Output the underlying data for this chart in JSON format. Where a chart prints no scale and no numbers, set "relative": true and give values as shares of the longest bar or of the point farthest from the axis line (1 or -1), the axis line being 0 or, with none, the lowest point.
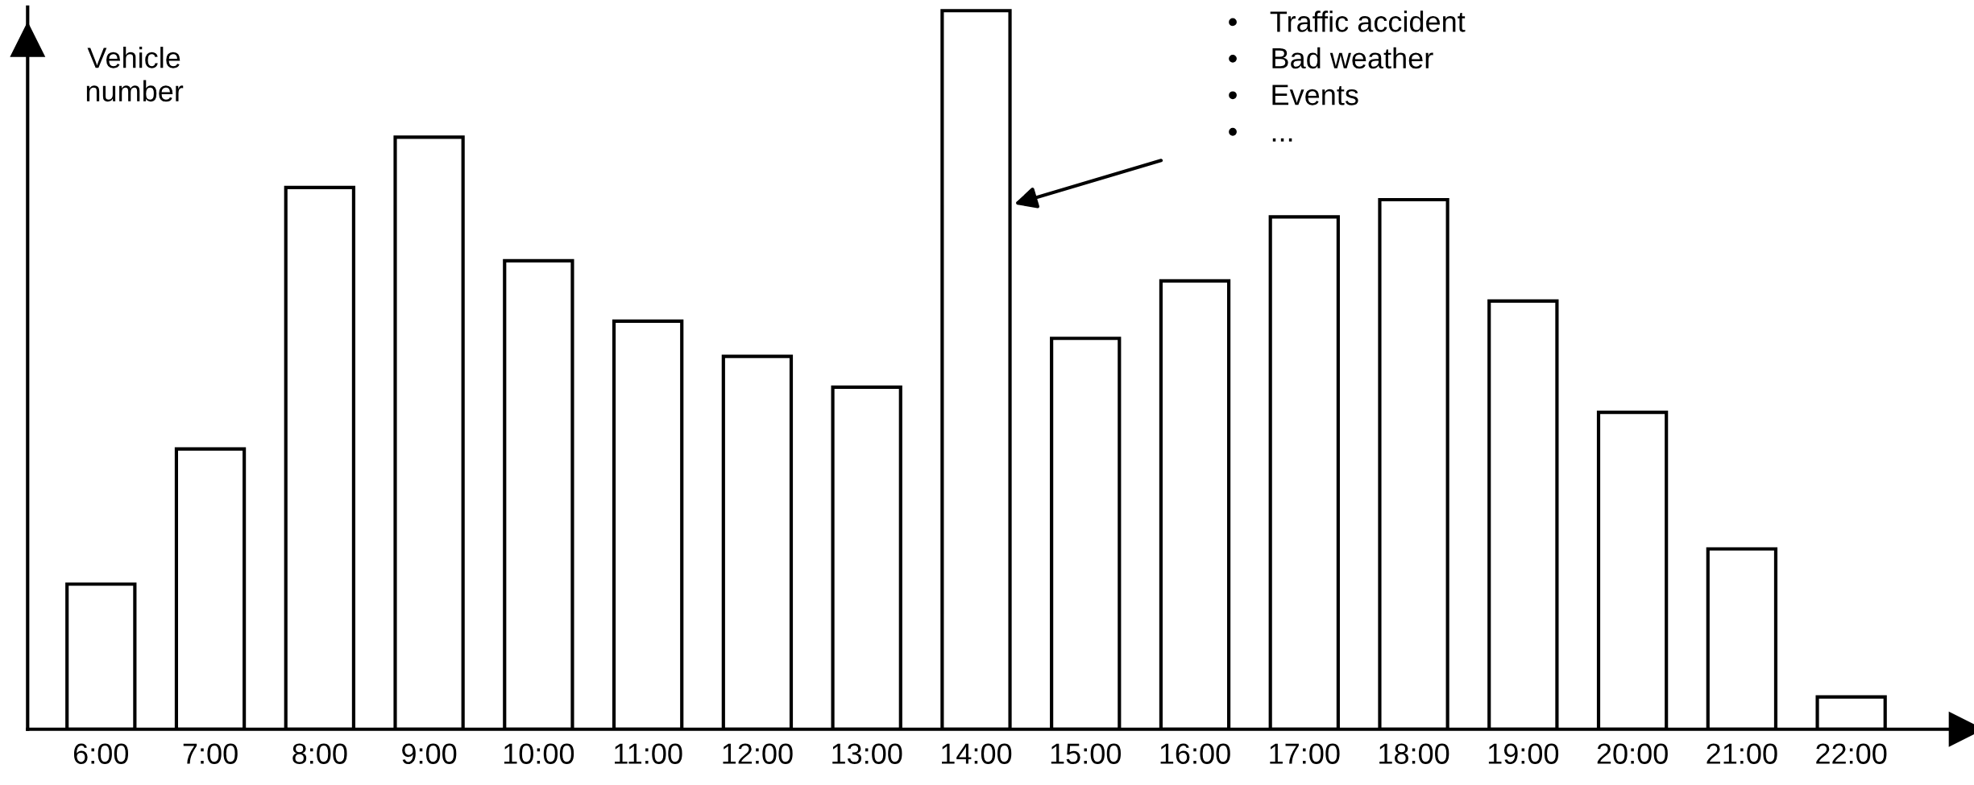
{
  "chart_data": {
    "type": "bar",
    "relative": true,
    "ylabel": "Vehicle\nnumber",
    "categories": [
      "6:00",
      "7:00",
      "8:00",
      "9:00",
      "10:00",
      "11:00",
      "12:00",
      "13:00",
      "14:00",
      "15:00",
      "16:00",
      "17:00",
      "18:00",
      "19:00",
      "20:00",
      "21:00",
      "22:00"
    ],
    "values": [
      0.202,
      0.39,
      0.754,
      0.824,
      0.652,
      0.568,
      0.519,
      0.476,
      1.0,
      0.544,
      0.624,
      0.713,
      0.737,
      0.596,
      0.441,
      0.251,
      0.045
    ],
    "color": "#ffffff",
    "grid": false,
    "legend": false,
    "annotations": [
      "•    Traffic accident\n•    Bad weather\n•    Events\n•    ..."
    ]
  }
}
